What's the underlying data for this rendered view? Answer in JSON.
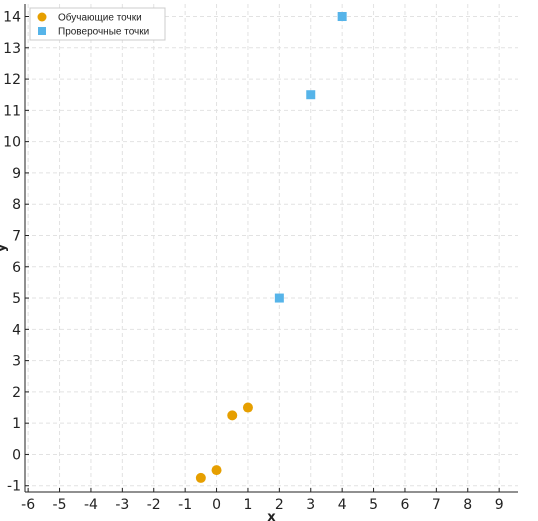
{
  "chart_data": {
    "type": "scatter",
    "title": "",
    "xlabel": "x",
    "ylabel": "y",
    "xlim": [
      -6.1,
      9.6
    ],
    "ylim": [
      -1.2,
      14.4
    ],
    "xticks": [
      -6,
      -5,
      -4,
      -3,
      -2,
      -1,
      0,
      1,
      2,
      3,
      4,
      5,
      6,
      7,
      8,
      9
    ],
    "yticks": [
      -1,
      0,
      1,
      2,
      3,
      4,
      5,
      6,
      7,
      8,
      9,
      10,
      11,
      12,
      13,
      14
    ],
    "grid": true,
    "legend_position": "top-left",
    "series": [
      {
        "name": "Обучающие точки",
        "marker": "circle",
        "color": "#e69f00",
        "points": [
          {
            "x": -0.5,
            "y": -0.75
          },
          {
            "x": 0.0,
            "y": -0.5
          },
          {
            "x": 0.5,
            "y": 1.25
          },
          {
            "x": 1.0,
            "y": 1.5
          }
        ]
      },
      {
        "name": "Проверочные точки",
        "marker": "square",
        "color": "#56b4e9",
        "points": [
          {
            "x": 2,
            "y": 5
          },
          {
            "x": 3,
            "y": 11.5
          },
          {
            "x": 4,
            "y": 14
          }
        ]
      }
    ]
  }
}
